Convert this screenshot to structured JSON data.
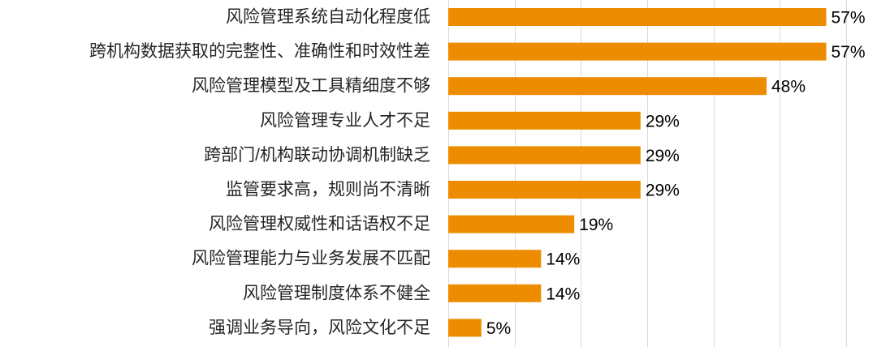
{
  "chart_data": {
    "type": "bar",
    "orientation": "horizontal",
    "categories": [
      "风险管理系统自动化程度低",
      "跨机构数据获取的完整性、准确性和时效性差",
      "风险管理模型及工具精细度不够",
      "风险管理专业人才不足",
      "跨部门/机构联动协调机制缺乏",
      "监管要求高，规则尚不清晰",
      "风险管理权威性和话语权不足",
      "风险管理能力与业务发展不匹配",
      "风险管理制度体系不健全",
      "强调业务导向，风险文化不足"
    ],
    "values": [
      57,
      57,
      48,
      29,
      29,
      29,
      19,
      14,
      14,
      5
    ],
    "value_labels": [
      "57%",
      "57%",
      "48%",
      "29%",
      "29%",
      "29%",
      "19%",
      "14%",
      "14%",
      "5%"
    ],
    "xlim": [
      0,
      60
    ],
    "x_gridlines": [
      0,
      10,
      20,
      30,
      40,
      50,
      60
    ],
    "grid": true,
    "legend": "none",
    "title": "",
    "xlabel": "",
    "ylabel": "",
    "colors": {
      "bar": "#EE8C00",
      "grid": "#D9D9D9",
      "label_text": "#262626",
      "value_text": "#000000"
    }
  }
}
